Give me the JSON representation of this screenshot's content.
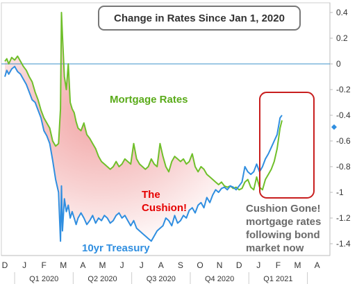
{
  "chart_data": {
    "type": "line",
    "title": "Change in Rates Since Jan 1, 2020",
    "ylim": [
      -1.45,
      0.45
    ],
    "yticks": [
      0.4,
      0.2,
      0,
      -0.2,
      -0.4,
      -0.6,
      -0.8,
      -1,
      -1.2,
      -1.4
    ],
    "ytick_labels": [
      "0.4",
      "0.2",
      "0",
      "-0.2",
      "-0.4",
      "-0.6",
      "-0.8",
      "-1",
      "-1.2",
      "-1.4"
    ],
    "month_labels": [
      "D",
      "J",
      "F",
      "M",
      "A",
      "M",
      "J",
      "J",
      "A",
      "S",
      "O",
      "N",
      "D",
      "J",
      "F",
      "M",
      "A"
    ],
    "quarter_labels": [
      "Q1 2020",
      "Q2 2020",
      "Q3 2020",
      "Q4 2020",
      "Q1 2021"
    ],
    "grid": false,
    "zero_line": true,
    "series": [
      {
        "name": "Mortgage Rates",
        "color": "#6fbf2a",
        "x": [
          0,
          0.1,
          0.2,
          0.35,
          0.5,
          0.65,
          0.8,
          0.95,
          1.1,
          1.25,
          1.4,
          1.55,
          1.7,
          1.85,
          2.0,
          2.15,
          2.3,
          2.45,
          2.6,
          2.75,
          2.85,
          2.9,
          2.95,
          3.05,
          3.15,
          3.25,
          3.35,
          3.45,
          3.55,
          3.65,
          3.75,
          3.9,
          4.05,
          4.2,
          4.35,
          4.5,
          4.65,
          4.8,
          4.95,
          5.1,
          5.25,
          5.4,
          5.55,
          5.7,
          5.85,
          6.0,
          6.15,
          6.3,
          6.45,
          6.6,
          6.75,
          6.9,
          7.05,
          7.2,
          7.35,
          7.5,
          7.65,
          7.8,
          7.95,
          8.1,
          8.25,
          8.4,
          8.55,
          8.7,
          8.85,
          9.0,
          9.15,
          9.3,
          9.45,
          9.6,
          9.75,
          9.9,
          10.05,
          10.2,
          10.35,
          10.5,
          10.65,
          10.8,
          10.95,
          11.1,
          11.25,
          11.4,
          11.55,
          11.7,
          11.85,
          12.0,
          12.15,
          12.3,
          12.45,
          12.6,
          12.75,
          12.9,
          13.05,
          13.2,
          13.35,
          13.5,
          13.65,
          13.8,
          13.95,
          14.1,
          14.2
        ],
        "values": [
          0.02,
          0.04,
          0.0,
          0.05,
          0.03,
          0.06,
          0.02,
          -0.02,
          -0.05,
          -0.1,
          -0.14,
          -0.22,
          -0.28,
          -0.36,
          -0.42,
          -0.46,
          -0.5,
          -0.6,
          -0.64,
          -0.62,
          -0.35,
          0.4,
          0.22,
          -0.1,
          -0.2,
          0.0,
          -0.3,
          -0.35,
          -0.38,
          -0.45,
          -0.5,
          -0.52,
          -0.46,
          -0.55,
          -0.58,
          -0.62,
          -0.66,
          -0.72,
          -0.76,
          -0.78,
          -0.8,
          -0.82,
          -0.8,
          -0.76,
          -0.8,
          -0.78,
          -0.74,
          -0.76,
          -0.78,
          -0.62,
          -0.74,
          -0.78,
          -0.8,
          -0.82,
          -0.8,
          -0.74,
          -0.78,
          -0.8,
          -0.62,
          -0.72,
          -0.8,
          -0.84,
          -0.76,
          -0.72,
          -0.74,
          -0.76,
          -0.74,
          -0.78,
          -0.76,
          -0.7,
          -0.8,
          -0.84,
          -0.8,
          -0.82,
          -0.86,
          -0.88,
          -0.9,
          -0.92,
          -0.94,
          -0.92,
          -0.95,
          -0.96,
          -0.95,
          -0.97,
          -0.96,
          -0.98,
          -0.97,
          -0.92,
          -0.9,
          -0.96,
          -0.98,
          -0.88,
          -0.96,
          -0.98,
          -0.9,
          -0.86,
          -0.82,
          -0.76,
          -0.66,
          -0.5,
          -0.44
        ]
      },
      {
        "name": "10yr Treasury",
        "color": "#2f8ee0",
        "x": [
          0,
          0.1,
          0.2,
          0.35,
          0.5,
          0.65,
          0.8,
          0.95,
          1.1,
          1.25,
          1.4,
          1.55,
          1.7,
          1.85,
          2.0,
          2.15,
          2.3,
          2.45,
          2.6,
          2.75,
          2.85,
          2.9,
          2.95,
          3.05,
          3.15,
          3.25,
          3.35,
          3.45,
          3.55,
          3.65,
          3.75,
          3.9,
          4.05,
          4.2,
          4.35,
          4.5,
          4.65,
          4.8,
          4.95,
          5.1,
          5.25,
          5.4,
          5.55,
          5.7,
          5.85,
          6.0,
          6.15,
          6.3,
          6.45,
          6.6,
          6.75,
          6.9,
          7.05,
          7.2,
          7.35,
          7.5,
          7.65,
          7.8,
          7.95,
          8.1,
          8.25,
          8.4,
          8.55,
          8.7,
          8.85,
          9.0,
          9.15,
          9.3,
          9.45,
          9.6,
          9.75,
          9.9,
          10.05,
          10.2,
          10.35,
          10.5,
          10.65,
          10.8,
          10.95,
          11.1,
          11.25,
          11.4,
          11.55,
          11.7,
          11.85,
          12.0,
          12.15,
          12.3,
          12.45,
          12.6,
          12.75,
          12.9,
          13.05,
          13.2,
          13.35,
          13.5,
          13.65,
          13.8,
          13.95,
          14.1,
          14.2
        ],
        "values": [
          -0.1,
          -0.05,
          -0.08,
          -0.04,
          -0.02,
          -0.06,
          -0.08,
          -0.12,
          -0.16,
          -0.22,
          -0.28,
          -0.3,
          -0.36,
          -0.42,
          -0.52,
          -0.56,
          -0.62,
          -0.75,
          -0.9,
          -1.0,
          -1.38,
          -0.95,
          -1.3,
          -1.05,
          -1.15,
          -1.1,
          -1.2,
          -1.15,
          -1.2,
          -1.25,
          -1.2,
          -1.16,
          -1.2,
          -1.25,
          -1.22,
          -1.18,
          -1.24,
          -1.2,
          -1.22,
          -1.18,
          -1.2,
          -1.24,
          -1.22,
          -1.18,
          -1.16,
          -1.2,
          -1.18,
          -1.22,
          -1.26,
          -1.22,
          -1.28,
          -1.3,
          -1.32,
          -1.34,
          -1.36,
          -1.38,
          -1.34,
          -1.3,
          -1.28,
          -1.26,
          -1.2,
          -1.22,
          -1.26,
          -1.18,
          -1.24,
          -1.22,
          -1.18,
          -1.2,
          -1.14,
          -1.12,
          -1.16,
          -1.1,
          -1.08,
          -1.12,
          -1.04,
          -1.08,
          -1.02,
          -0.98,
          -1.0,
          -0.97,
          -0.96,
          -0.98,
          -0.95,
          -0.96,
          -0.98,
          -0.95,
          -0.92,
          -0.8,
          -0.84,
          -0.86,
          -0.84,
          -0.78,
          -0.84,
          -0.8,
          -0.74,
          -0.7,
          -0.65,
          -0.6,
          -0.55,
          -0.42,
          -0.4
        ]
      }
    ],
    "annotations": {
      "mortgage": "Mortgage Rates",
      "treasury": "10yr Treasury",
      "cushion": [
        "The",
        "Cushion!"
      ],
      "gone": [
        "Cushion Gone!",
        "mortgage rates",
        "following bond",
        "market now"
      ]
    }
  },
  "colors": {
    "mortgage": "#6fbf2a",
    "treasury": "#2f8ee0",
    "cushion": "#e60000",
    "gone": "#6a6a6a",
    "box": "#c81e1e",
    "zero": "#3c91c8"
  }
}
